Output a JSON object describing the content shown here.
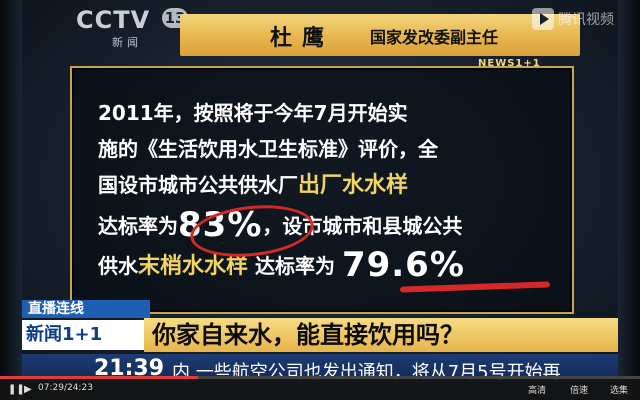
{
  "channel": {
    "brand": "CCTV",
    "number": "13",
    "sub": "新闻"
  },
  "speaker": {
    "name": "杜鹰",
    "title": "国家发改委副主任"
  },
  "watermark": {
    "text": "腾讯视频"
  },
  "program_badge": "NEWS1+1",
  "content": {
    "lines": [
      {
        "text": "2011年，按照将于今年7月开始实"
      },
      {
        "text": "施的《生活饮用水卫生标准》评价，全"
      },
      {
        "pre": "国设市城市公共供水厂",
        "highlight": "出厂水水样"
      },
      {
        "pre": "达标率为",
        "big": "83%",
        "post": "，设市城市和县城公共"
      },
      {
        "pre": "供水",
        "highlight": "末梢水水样",
        "mid": "达标率为",
        "big": "79.6%"
      }
    ]
  },
  "lower_third": {
    "live_label": "直播连线",
    "program": "新闻1+1",
    "headline": "你家自来水，能直接饮用吗？"
  },
  "ticker": {
    "clock": "21:39",
    "text": "内  一些航空公司也发出通知，将从7月5号开始再"
  },
  "player": {
    "elapsed": "07:29",
    "total": "24:23",
    "progress": 0.31,
    "items": [
      "高清",
      "倍速",
      "选集"
    ]
  },
  "colors": {
    "accent": "#e7b34a",
    "highlight": "#f2d465",
    "annotation": "#d62828",
    "ticker": "#102a57"
  }
}
